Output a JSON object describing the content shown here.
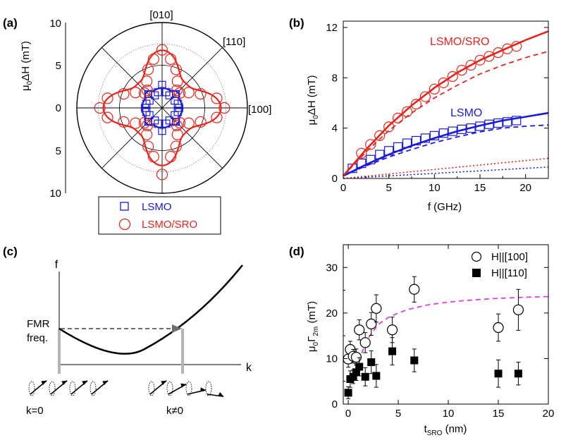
{
  "colors": {
    "red": "#e8241c",
    "blue": "#1a1adc",
    "magenta": "#e040e0",
    "gray": "#8c8c8c",
    "black": "#000000"
  },
  "chart_data": [
    {
      "panel": "(a)",
      "type": "polar",
      "ylabel_main": "μ",
      "ylabel_sub": "0",
      "ylabel_rest": "ΔH (mT)",
      "radial_ticks": [
        "10",
        "5",
        "0",
        "5",
        "10"
      ],
      "rlim": [
        0,
        10
      ],
      "direction_labels": [
        "[010]",
        "[110]",
        "[100]"
      ],
      "legend": [
        "LSMO",
        "LSMO/SRO"
      ],
      "series": [
        {
          "name": "LSMO",
          "marker": "square",
          "color": "blue",
          "points": [
            [
              0,
              2.0
            ],
            [
              15,
              1.9
            ],
            [
              30,
              1.7
            ],
            [
              45,
              2.3
            ],
            [
              60,
              1.7
            ],
            [
              75,
              1.9
            ],
            [
              90,
              2.7
            ],
            [
              105,
              1.9
            ],
            [
              120,
              1.7
            ],
            [
              135,
              2.3
            ],
            [
              150,
              1.7
            ],
            [
              165,
              1.9
            ],
            [
              180,
              2.0
            ],
            [
              195,
              1.9
            ],
            [
              210,
              1.7
            ],
            [
              225,
              2.3
            ],
            [
              240,
              1.7
            ],
            [
              255,
              1.9
            ],
            [
              270,
              2.7
            ],
            [
              285,
              1.9
            ],
            [
              300,
              1.7
            ],
            [
              315,
              2.3
            ],
            [
              330,
              1.7
            ],
            [
              345,
              1.9
            ]
          ],
          "fit": {
            "a": 0.8,
            "b": 2.4,
            "c": 0.9,
            "e": 0.5
          }
        },
        {
          "name": "LSMO/SRO",
          "marker": "circle",
          "color": "red",
          "points": [
            [
              0,
              7.3
            ],
            [
              10,
              6.5
            ],
            [
              20,
              4.8
            ],
            [
              30,
              3.6
            ],
            [
              40,
              2.7
            ],
            [
              50,
              2.7
            ],
            [
              60,
              3.6
            ],
            [
              70,
              4.8
            ],
            [
              80,
              5.8
            ],
            [
              90,
              6.8
            ],
            [
              100,
              5.8
            ],
            [
              110,
              4.8
            ],
            [
              120,
              3.6
            ],
            [
              130,
              2.7
            ],
            [
              140,
              2.7
            ],
            [
              150,
              3.6
            ],
            [
              160,
              4.8
            ],
            [
              170,
              6.5
            ],
            [
              180,
              7.3
            ],
            [
              190,
              6.5
            ],
            [
              200,
              4.8
            ],
            [
              210,
              3.6
            ],
            [
              220,
              2.7
            ],
            [
              230,
              2.7
            ],
            [
              240,
              3.6
            ],
            [
              250,
              4.8
            ],
            [
              260,
              5.8
            ],
            [
              270,
              7.8
            ],
            [
              280,
              5.8
            ],
            [
              290,
              4.8
            ],
            [
              300,
              3.6
            ],
            [
              310,
              2.7
            ],
            [
              320,
              2.7
            ],
            [
              330,
              3.6
            ],
            [
              340,
              4.8
            ],
            [
              350,
              6.5
            ]
          ],
          "fit": {
            "a": 2.0,
            "b": 6.9,
            "c": 0.0,
            "e": 0.8
          }
        }
      ]
    },
    {
      "panel": "(b)",
      "type": "scatter",
      "xlabel": "f (GHz)",
      "ylabel_main": "μ",
      "ylabel_sub": "0",
      "ylabel_rest": "ΔH (mT)",
      "xlim": [
        0,
        22.5
      ],
      "ylim": [
        0,
        12.5
      ],
      "xticks": [
        "0",
        "5",
        "10",
        "15",
        "20"
      ],
      "yticks": [
        "0",
        "4",
        "8",
        "12"
      ],
      "annotations": [
        "LSMO/SRO",
        "LSMO"
      ],
      "series": [
        {
          "name": "LSMO",
          "marker": "square",
          "color": "blue",
          "x": [
            1,
            2,
            3,
            4,
            5,
            6,
            7,
            8,
            9,
            10,
            11,
            12,
            13,
            14,
            15,
            16,
            17,
            18,
            19
          ],
          "y": [
            0.8,
            1.2,
            1.5,
            1.9,
            2.2,
            2.5,
            2.8,
            3.0,
            3.2,
            3.4,
            3.6,
            3.75,
            3.9,
            4.0,
            4.15,
            4.3,
            4.4,
            4.5,
            4.6
          ],
          "fit_solid": [
            [
              0,
              0.2
            ],
            [
              2.5,
              1.1
            ],
            [
              5,
              1.9
            ],
            [
              7.5,
              2.6
            ],
            [
              10,
              3.2
            ],
            [
              12.5,
              3.75
            ],
            [
              15,
              4.2
            ],
            [
              17.5,
              4.6
            ],
            [
              20,
              4.9
            ],
            [
              22.5,
              5.2
            ]
          ],
          "fit_dashed": [
            [
              0,
              0.2
            ],
            [
              2.5,
              1.0
            ],
            [
              5,
              1.7
            ],
            [
              7.5,
              2.3
            ],
            [
              10,
              2.85
            ],
            [
              12.5,
              3.3
            ],
            [
              15,
              3.7
            ],
            [
              17.5,
              4.0
            ],
            [
              20,
              4.15
            ],
            [
              22.5,
              4.25
            ]
          ],
          "fit_dotted": [
            [
              0,
              0
            ],
            [
              22.5,
              0.9
            ]
          ]
        },
        {
          "name": "LSMO/SRO",
          "marker": "circle",
          "color": "red",
          "x": [
            2,
            3,
            4,
            5,
            6,
            7,
            8,
            9,
            10,
            11,
            12,
            13,
            14,
            15,
            16,
            17,
            18,
            19
          ],
          "y": [
            2.0,
            2.7,
            3.4,
            4.1,
            4.8,
            5.3,
            5.9,
            6.5,
            7.1,
            7.6,
            8.1,
            8.6,
            9.0,
            9.4,
            9.7,
            10.0,
            10.3,
            10.5
          ],
          "fit_solid": [
            [
              0,
              0.2
            ],
            [
              2.5,
              2.3
            ],
            [
              5,
              4.2
            ],
            [
              7.5,
              5.8
            ],
            [
              10,
              7.2
            ],
            [
              12.5,
              8.4
            ],
            [
              15,
              9.4
            ],
            [
              17.5,
              10.2
            ],
            [
              20,
              11.0
            ],
            [
              22.5,
              11.7
            ]
          ],
          "fit_dashed": [
            [
              0,
              0.2
            ],
            [
              2.5,
              2.1
            ],
            [
              5,
              3.8
            ],
            [
              7.5,
              5.2
            ],
            [
              10,
              6.4
            ],
            [
              12.5,
              7.4
            ],
            [
              15,
              8.3
            ],
            [
              17.5,
              9.0
            ],
            [
              20,
              9.6
            ],
            [
              22.5,
              10.1
            ]
          ],
          "fit_dotted": [
            [
              0,
              0
            ],
            [
              22.5,
              1.6
            ]
          ]
        }
      ]
    },
    {
      "panel": "(c)",
      "type": "diagram",
      "yaxis_label": "f",
      "xaxis_label": "k",
      "fmr_label_line1": "FMR",
      "fmr_label_line2": "freq.",
      "k_zero_label": "k=0",
      "k_nonzero_label": "k≠0"
    },
    {
      "panel": "(d)",
      "type": "scatter",
      "xlabel_main": "t",
      "xlabel_sub": "SRO",
      "xlabel_rest": " (nm)",
      "ylabel_main": "μ",
      "ylabel_sub0": "0",
      "ylabel_gamma": "Γ",
      "ylabel_sub2m": "2m",
      "ylabel_rest": " (mT)",
      "xlim": [
        -0.5,
        20
      ],
      "ylim": [
        0,
        35
      ],
      "xticks": [
        "0",
        "5",
        "10",
        "15",
        "20"
      ],
      "yticks": [
        "0",
        "10",
        "20",
        "30"
      ],
      "legend": [
        "H||[100]",
        "H||[110]"
      ],
      "series": [
        {
          "name": "H||[100]",
          "marker": "open-circle",
          "x": [
            0,
            0.2,
            0.5,
            0.8,
            1.1,
            1.7,
            2.3,
            2.8,
            4.4,
            6.6,
            15.0,
            17.0
          ],
          "y": [
            9.9,
            12.0,
            10.5,
            10.3,
            16.3,
            13.5,
            17.6,
            21.0,
            16.3,
            25.2,
            16.8,
            20.7
          ],
          "err": [
            1.8,
            1.8,
            1.5,
            1.8,
            2.2,
            2.2,
            2.5,
            3.0,
            2.8,
            2.8,
            3.0,
            4.5
          ]
        },
        {
          "name": "H||[110]",
          "marker": "filled-square",
          "x": [
            0,
            0.2,
            0.5,
            0.8,
            1.1,
            1.7,
            2.3,
            2.8,
            4.4,
            6.6,
            15.0,
            17.0
          ],
          "y": [
            2.5,
            5.5,
            6.0,
            7.0,
            8.2,
            6.0,
            9.2,
            6.2,
            11.6,
            9.6,
            6.7,
            6.7
          ],
          "err": [
            1.3,
            1.8,
            1.5,
            1.8,
            2.0,
            2.0,
            2.5,
            2.5,
            3.0,
            2.5,
            3.0,
            2.5
          ]
        }
      ],
      "trend_dashed": [
        [
          1.0,
          9.5
        ],
        [
          2,
          14.5
        ],
        [
          3,
          17.5
        ],
        [
          4,
          19.0
        ],
        [
          5,
          20.0
        ],
        [
          6,
          20.8
        ],
        [
          8,
          21.8
        ],
        [
          10,
          22.4
        ],
        [
          12,
          22.8
        ],
        [
          14,
          23.1
        ],
        [
          16,
          23.3
        ],
        [
          18,
          23.5
        ],
        [
          20,
          23.6
        ]
      ]
    }
  ]
}
